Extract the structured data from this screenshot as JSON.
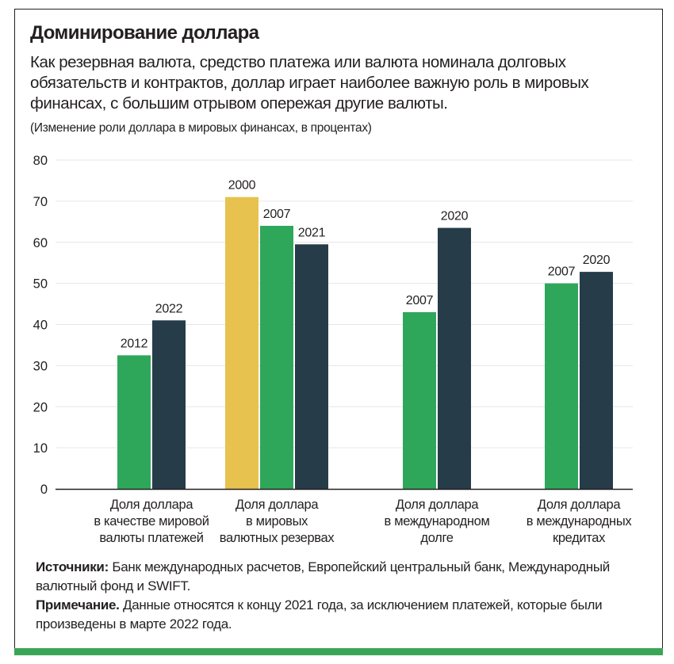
{
  "title": "Доминирование доллара",
  "subtitle": "Как резервная валюта, средство платежа или валюта номинала долговых обязательств и контрактов, доллар играет наиболее важную роль в мировых финансах, с большим отрывом опережая другие валюты.",
  "unit_note": "(Изменение роли доллара в мировых финансах, в процентах)",
  "footer": {
    "sources_label": "Источники:",
    "sources_text": " Банк международных расчетов, Европейский центральный банк, Международный валютный фонд и SWIFT.",
    "note_label": "Примечание.",
    "note_text": " Данные относятся к концу 2021 года, за исключением платежей, которые были произведены в марте 2022 года."
  },
  "colors": {
    "y2000": "#e7c24f",
    "y2007": "#2fa75b",
    "y2012": "#2fa75b",
    "dark": "#263c48",
    "grid": "#e6e6e6",
    "axis": "#231f20"
  },
  "chart_data": {
    "type": "bar",
    "title": "Доминирование доллара",
    "ylabel": "",
    "xlabel": "",
    "ylim": [
      0,
      80
    ],
    "yticks": [
      0,
      10,
      20,
      30,
      40,
      50,
      60,
      70,
      80
    ],
    "grid": true,
    "groups": [
      {
        "label": [
          "Доля доллара",
          "в качестве мировой",
          "валюты платежей"
        ],
        "bars": [
          {
            "year": "2012",
            "value": 32.5,
            "color": "#2fa75b"
          },
          {
            "year": "2022",
            "value": 41,
            "color": "#263c48"
          }
        ]
      },
      {
        "label": [
          "Доля доллара",
          "в мировых",
          "валютных резервах"
        ],
        "bars": [
          {
            "year": "2000",
            "value": 71,
            "color": "#e7c24f"
          },
          {
            "year": "2007",
            "value": 64,
            "color": "#2fa75b"
          },
          {
            "year": "2021",
            "value": 59.5,
            "color": "#263c48"
          }
        ]
      },
      {
        "label": [
          "Доля доллара",
          "в международном",
          "долге"
        ],
        "bars": [
          {
            "year": "2007",
            "value": 43,
            "color": "#2fa75b"
          },
          {
            "year": "2020",
            "value": 63.5,
            "color": "#263c48"
          }
        ]
      },
      {
        "label": [
          "Доля доллара",
          "в международных",
          "кредитах"
        ],
        "bars": [
          {
            "year": "2007",
            "value": 50,
            "color": "#2fa75b"
          },
          {
            "year": "2020",
            "value": 52.8,
            "color": "#263c48"
          }
        ]
      }
    ]
  }
}
